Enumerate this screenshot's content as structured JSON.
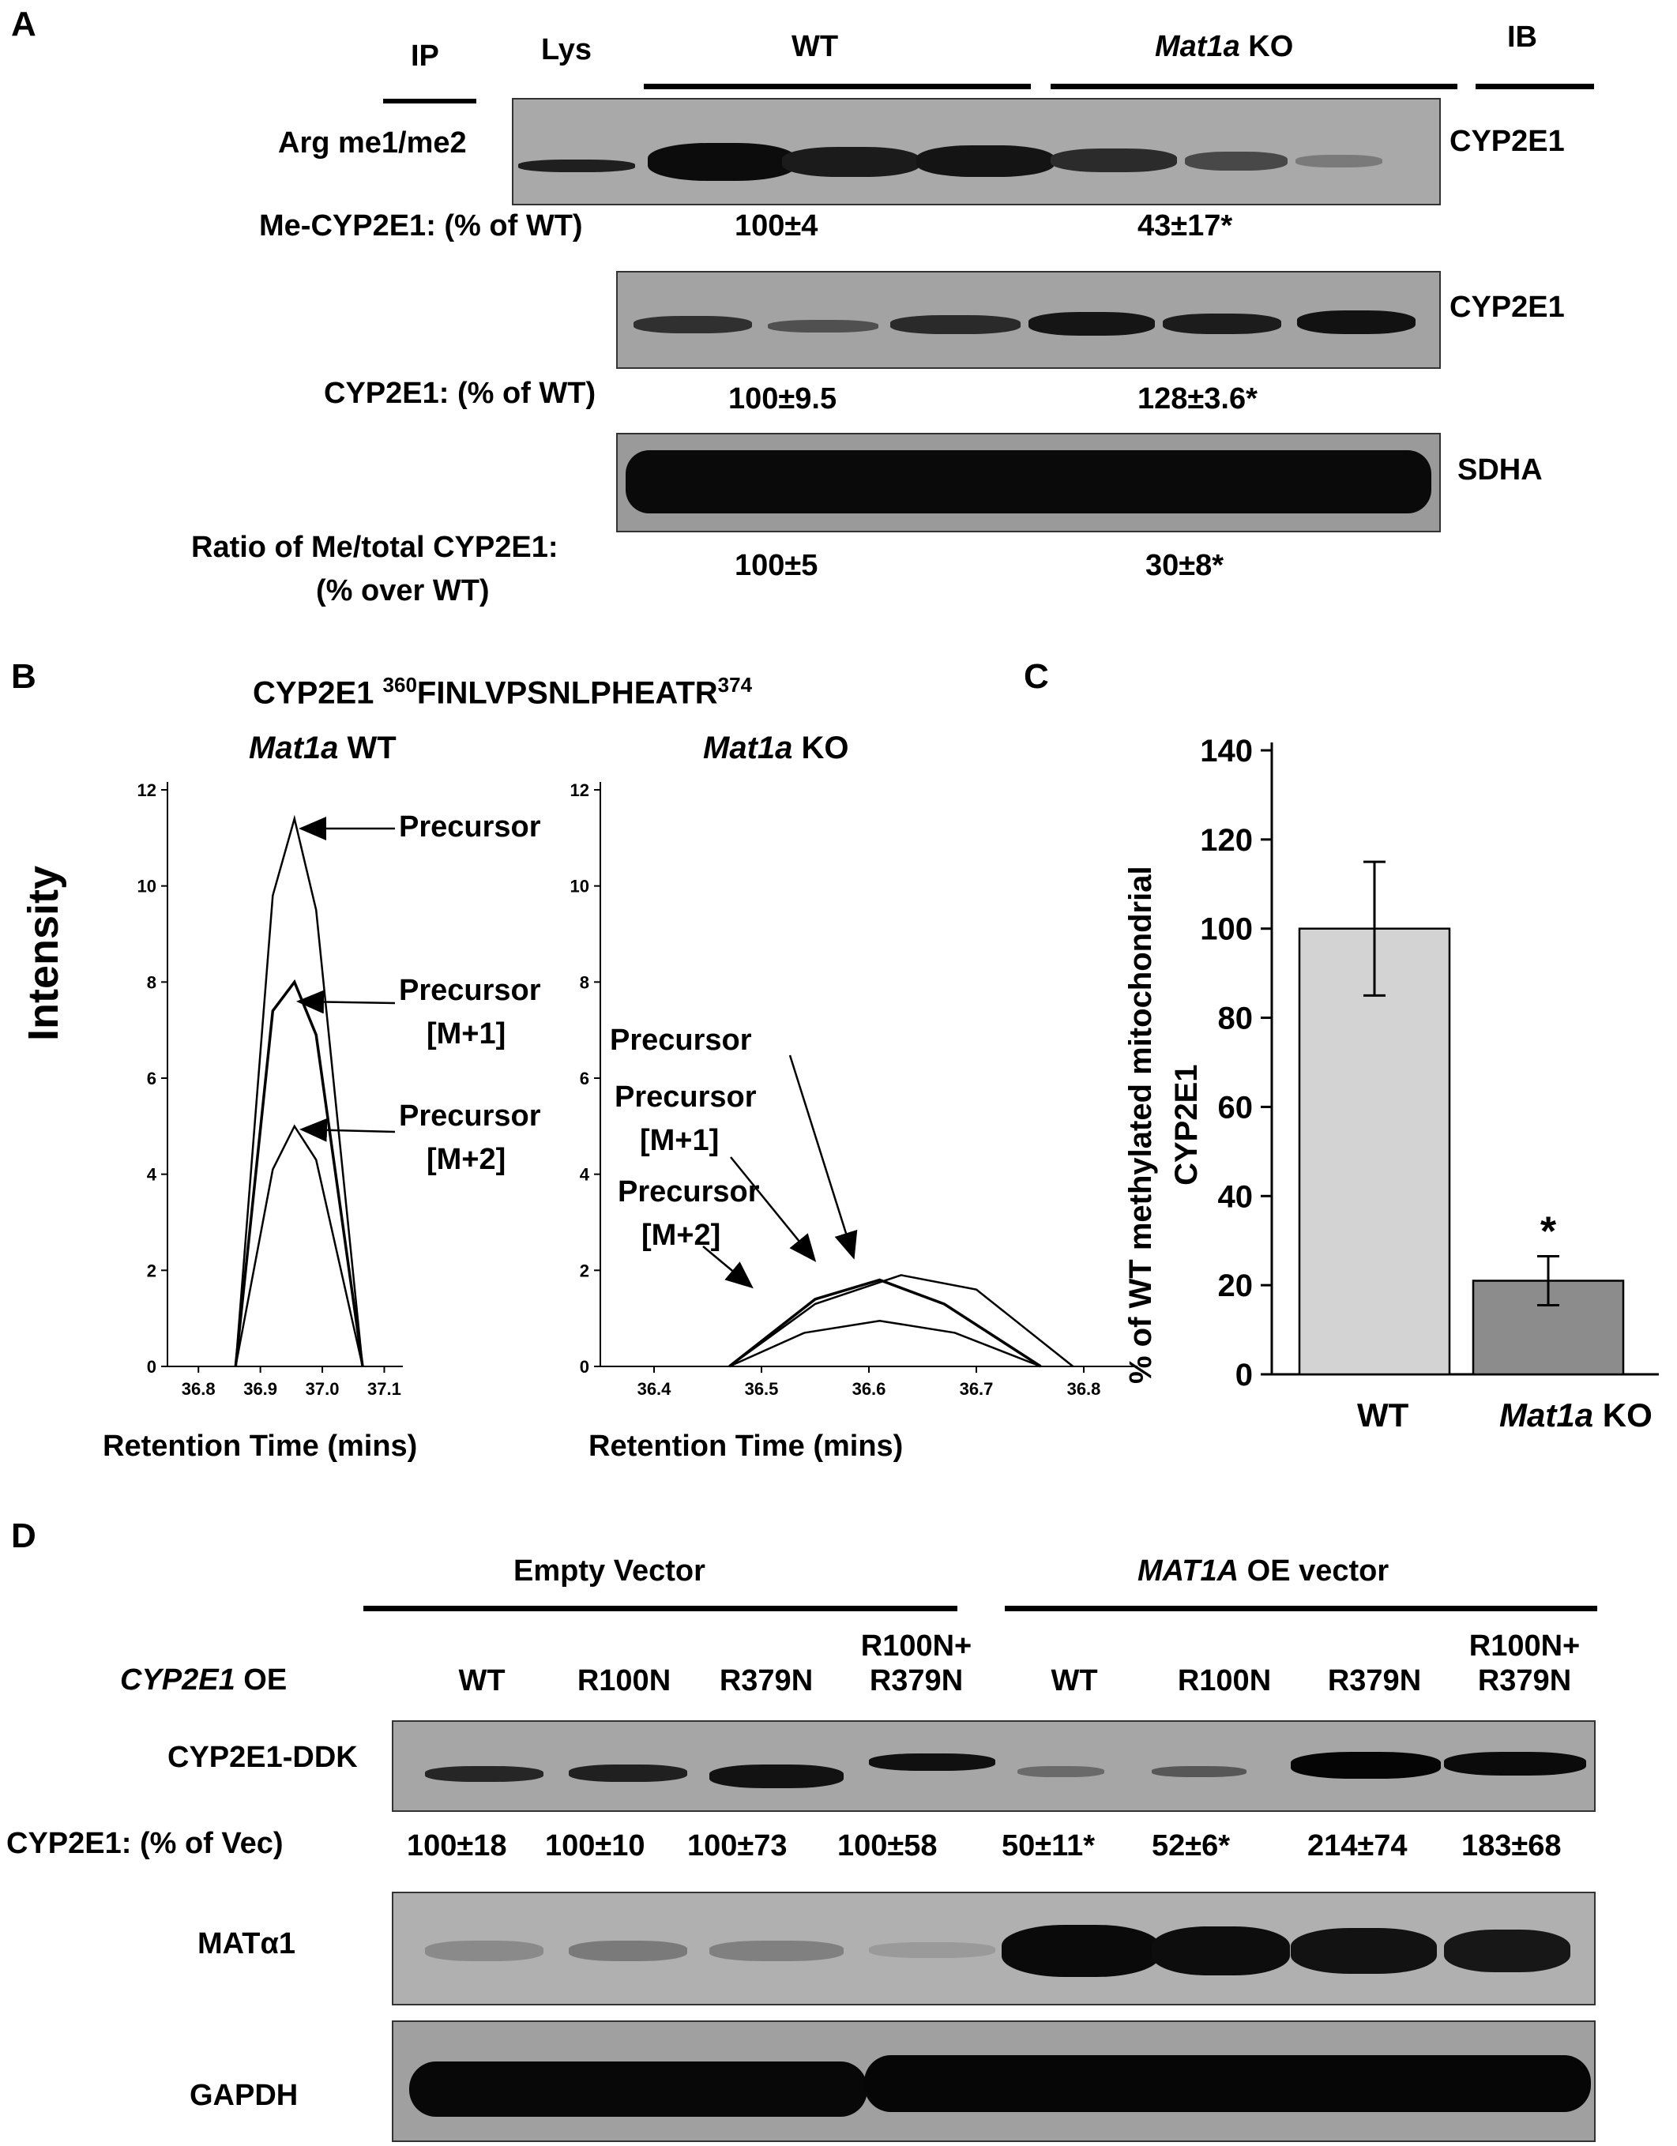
{
  "panel_a": {
    "letter": "A",
    "ip": "IP",
    "lys": "Lys",
    "wt": "WT",
    "ko_gene": "Mat1a",
    "ko_suffix": " KO",
    "ib": "IB",
    "row1_label": "Arg me1/me2",
    "row1_target": "CYP2E1",
    "me_label": "Me-CYP2E1: (% of WT)",
    "me_wt": "100±4",
    "me_ko": "43±17*",
    "row2_target": "CYP2E1",
    "total_label": "CYP2E1: (% of WT)",
    "total_wt": "100±9.5",
    "total_ko": "128±3.6*",
    "row3_target": "SDHA",
    "ratio_label_1": "Ratio of Me/total CYP2E1:",
    "ratio_label_2": "(% over WT)",
    "ratio_wt": "100±5",
    "ratio_ko": "30±8*"
  },
  "panel_b": {
    "letter": "B",
    "title_prefix": "CYP2E1 ",
    "title_sup_start": "360",
    "title_seq": "FINLVPSNLPHEATR",
    "title_sup_end": "374",
    "left_title_gene": "Mat1a",
    "left_title_suffix": " WT",
    "right_title_gene": "Mat1a",
    "right_title_suffix": " KO",
    "ylabel": "Intensity",
    "xlabel": "Retention Time (mins)",
    "ann_precursor": "Precursor",
    "ann_m1": "[M+1]",
    "ann_m2": "[M+2]"
  },
  "panel_c": {
    "letter": "C",
    "ylabel_1": "% of WT methylated mitochondrial",
    "ylabel_2": "CYP2E1",
    "star": "*",
    "cat_wt": "WT",
    "cat_ko_gene": "Mat1a",
    "cat_ko_suffix": " KO"
  },
  "panel_d": {
    "letter": "D",
    "empty_vector": "Empty Vector",
    "mat1a_gene": "MAT1A",
    "mat1a_suffix": " OE vector",
    "oe_gene": "CYP2E1",
    "oe_suffix": " OE",
    "lanes": [
      "WT",
      "R100N",
      "R379N",
      "R100N+",
      "WT",
      "R100N",
      "R379N",
      "R100N+"
    ],
    "lanes_line2": [
      "",
      "",
      "",
      "R379N",
      "",
      "",
      "",
      "R379N"
    ],
    "row1_label": "CYP2E1-DDK",
    "quant_label": "CYP2E1: (% of Vec)",
    "quant": [
      "100±18",
      "100±10",
      "100±73",
      "100±58",
      "50±11*",
      "52±6*",
      "214±74",
      "183±68"
    ],
    "row2_label": "MATα1",
    "row3_label": "GAPDH"
  },
  "chart_data": [
    {
      "type": "line",
      "panel": "B-left",
      "xlabel": "Retention Time (mins)",
      "ylabel": "Intensity",
      "xticks": [
        36.8,
        36.9,
        37.0,
        37.1
      ],
      "yticks": [
        0,
        2,
        4,
        6,
        8,
        10,
        12
      ],
      "xlim": [
        36.75,
        37.13
      ],
      "ylim": [
        0,
        12
      ],
      "series": [
        {
          "name": "Precursor",
          "x": [
            36.86,
            36.92,
            36.955,
            36.99,
            37.065
          ],
          "y": [
            0,
            9.8,
            11.4,
            9.5,
            0
          ]
        },
        {
          "name": "Precursor [M+1]",
          "x": [
            36.86,
            36.92,
            36.955,
            36.99,
            37.065
          ],
          "y": [
            0,
            7.4,
            8.0,
            6.9,
            0
          ]
        },
        {
          "name": "Precursor [M+2]",
          "x": [
            36.86,
            36.92,
            36.955,
            36.99,
            37.065
          ],
          "y": [
            0,
            4.1,
            5.0,
            4.3,
            0
          ]
        }
      ]
    },
    {
      "type": "line",
      "panel": "B-right",
      "xlabel": "Retention Time (mins)",
      "ylabel": "Intensity",
      "xticks": [
        36.4,
        36.5,
        36.6,
        36.7,
        36.8
      ],
      "yticks": [
        0,
        2,
        4,
        6,
        8,
        10,
        12
      ],
      "xlim": [
        36.35,
        36.85
      ],
      "ylim": [
        0,
        12
      ],
      "series": [
        {
          "name": "Precursor",
          "x": [
            36.47,
            36.55,
            36.63,
            36.7,
            36.79
          ],
          "y": [
            0,
            1.3,
            1.9,
            1.6,
            0
          ]
        },
        {
          "name": "Precursor [M+1]",
          "x": [
            36.47,
            36.55,
            36.61,
            36.67,
            36.76
          ],
          "y": [
            0,
            1.4,
            1.8,
            1.3,
            0
          ]
        },
        {
          "name": "Precursor [M+2]",
          "x": [
            36.47,
            36.54,
            36.61,
            36.68,
            36.76
          ],
          "y": [
            0,
            0.7,
            0.95,
            0.7,
            0
          ]
        }
      ]
    },
    {
      "type": "bar",
      "panel": "C",
      "categories": [
        "WT",
        "Mat1a KO"
      ],
      "values": [
        100,
        21
      ],
      "errors": [
        15,
        5.5
      ],
      "colors": [
        "#d3d3d3",
        "#8c8c8c"
      ],
      "ylabel": "% of WT methylated mitochondrial CYP2E1",
      "yticks": [
        0,
        20,
        40,
        60,
        80,
        100,
        120,
        140
      ],
      "ylim": [
        0,
        140
      ]
    }
  ]
}
